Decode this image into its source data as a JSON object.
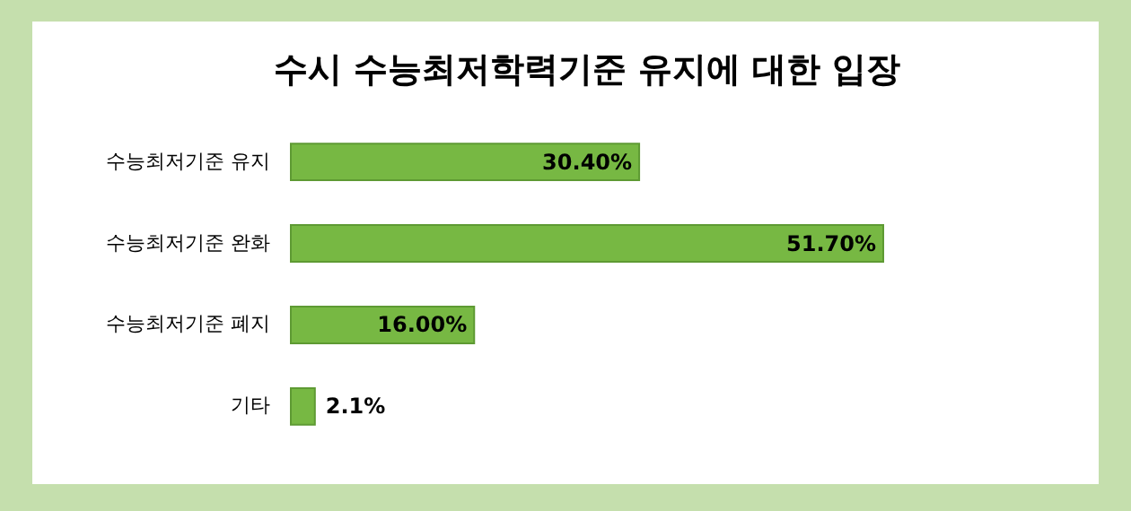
{
  "chart_data": {
    "type": "bar",
    "orientation": "horizontal",
    "title": "수시 수능최저학력기준 유지에 대한 입장",
    "categories": [
      "수능최저기준 유지",
      "수능최저기준 완화",
      "수능최저기준 폐지",
      "기타"
    ],
    "values": [
      30.4,
      51.7,
      16.0,
      2.1
    ],
    "value_labels": [
      "30.40%",
      "51.70%",
      "16.00%",
      "2.1%"
    ],
    "color": "#77b843"
  }
}
